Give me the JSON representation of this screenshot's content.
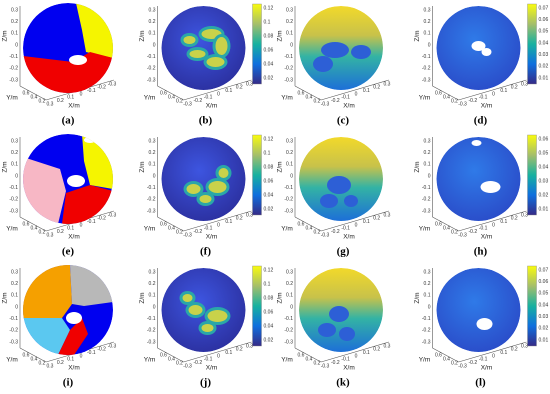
{
  "panels": [
    {
      "label": "(a)",
      "z_label": "Z/m",
      "y_label": "Y/m",
      "x_label": "X/m",
      "z_ticks": [
        0.3,
        0.2,
        0.1,
        0,
        -0.1,
        -0.2,
        -0.3
      ],
      "y_ticks": [
        0.6,
        0.4,
        0.2
      ],
      "x_ticks": [
        0.3,
        0.2,
        0.1,
        0,
        -0.1,
        -0.2,
        -0.3
      ]
    },
    {
      "label": "(b)",
      "z_label": "Z/m",
      "y_label": "Y/m",
      "x_label": "X/m",
      "z_ticks": [
        0.3,
        0.2,
        0.1,
        0,
        -0.1,
        -0.2,
        -0.3
      ],
      "y_ticks": [
        0.6,
        0.4,
        0.2
      ],
      "x_ticks": [
        -0.3,
        -0.2,
        -0.1,
        0,
        0.1,
        0.2,
        0.3
      ],
      "colorbar_ticks": [
        0.12,
        0.1,
        0.08,
        0.06,
        0.04,
        0.02
      ]
    },
    {
      "label": "(c)",
      "z_label": "Z/m",
      "y_label": "Y/m",
      "x_label": "X/m",
      "z_ticks": [
        0.3,
        0.2,
        0.1,
        0,
        -0.1,
        -0.2,
        -0.3
      ],
      "y_ticks": [
        0.6,
        0.4,
        0.2
      ],
      "x_ticks": [
        -0.3,
        -0.2,
        -0.1,
        0,
        0.1,
        0.2,
        0.3
      ]
    },
    {
      "label": "(d)",
      "z_label": "Z/m",
      "y_label": "Y/m",
      "x_label": "X/m",
      "z_ticks": [
        0.3,
        0.2,
        0.1,
        0,
        -0.1,
        -0.2,
        -0.3
      ],
      "y_ticks": [
        0.6,
        0.4,
        0.2
      ],
      "x_ticks": [
        -0.3,
        -0.2,
        -0.1,
        0,
        0.1,
        0.2,
        0.3
      ],
      "colorbar_ticks": [
        0.07,
        0.06,
        0.05,
        0.04,
        0.03,
        0.02,
        0.01
      ]
    },
    {
      "label": "(e)",
      "z_label": "Z/m",
      "y_label": "Y/m",
      "x_label": "X/m",
      "z_ticks": [
        0.3,
        0.2,
        0.1,
        0,
        -0.1,
        -0.2,
        -0.3
      ],
      "y_ticks": [
        0.6,
        0.4,
        0.2
      ],
      "x_ticks": [
        0.3,
        0.2,
        0.1,
        0,
        -0.1,
        -0.2,
        -0.3
      ]
    },
    {
      "label": "(f)",
      "z_label": "Z/m",
      "y_label": "Y/m",
      "x_label": "X/m",
      "z_ticks": [
        0.3,
        0.2,
        0.1,
        0,
        -0.1,
        -0.2,
        -0.3
      ],
      "y_ticks": [
        0.6,
        0.4,
        0.2
      ],
      "x_ticks": [
        -0.3,
        -0.2,
        -0.1,
        0,
        0.1,
        0.2,
        0.3
      ],
      "colorbar_ticks": [
        0.12,
        0.1,
        0.08,
        0.06,
        0.04,
        0.02
      ]
    },
    {
      "label": "(g)",
      "z_label": "Z/m",
      "y_label": "Y/m",
      "x_label": "X/m",
      "z_ticks": [
        0.3,
        0.2,
        0.1,
        0,
        -0.1,
        -0.2,
        -0.3
      ],
      "y_ticks": [
        0.6,
        0.4,
        0.2
      ],
      "x_ticks": [
        -0.3,
        -0.2,
        -0.1,
        0,
        0.1,
        0.2,
        0.3
      ]
    },
    {
      "label": "(h)",
      "z_label": "Z/m",
      "y_label": "Y/m",
      "x_label": "X/m",
      "z_ticks": [
        0.3,
        0.2,
        0.1,
        0,
        -0.1,
        -0.2,
        -0.3
      ],
      "y_ticks": [
        0.6,
        0.4,
        0.2
      ],
      "x_ticks": [
        -0.3,
        -0.2,
        -0.1,
        0,
        0.1,
        0.2,
        0.3
      ],
      "colorbar_ticks": [
        0.06,
        0.05,
        0.04,
        0.03,
        0.02,
        0.01
      ]
    },
    {
      "label": "(i)",
      "z_label": "Z/m",
      "y_label": "Y/m",
      "x_label": "X/m",
      "z_ticks": [
        0.3,
        0.2,
        0.1,
        0,
        -0.1,
        -0.2,
        -0.3
      ],
      "y_ticks": [
        0.6,
        0.4,
        0.2
      ],
      "x_ticks": [
        0.3,
        0.2,
        0.1,
        0,
        -0.1,
        -0.2,
        -0.3
      ]
    },
    {
      "label": "(j)",
      "z_label": "Z/m",
      "y_label": "Y/m",
      "x_label": "X/m",
      "z_ticks": [
        0.3,
        0.2,
        0.1,
        0,
        -0.1,
        -0.2,
        -0.3
      ],
      "y_ticks": [
        0.6,
        0.4,
        0.2
      ],
      "x_ticks": [
        -0.3,
        -0.2,
        -0.1,
        0,
        0.1,
        0.2,
        0.3
      ],
      "colorbar_ticks": [
        0.12,
        0.1,
        0.08,
        0.06,
        0.04,
        0.02
      ]
    },
    {
      "label": "(k)",
      "z_label": "Z/m",
      "y_label": "Y/m",
      "x_label": "X/m",
      "z_ticks": [
        0.3,
        0.2,
        0.1,
        0,
        -0.1,
        -0.2,
        -0.3
      ],
      "y_ticks": [
        0.6,
        0.4,
        0.2
      ],
      "x_ticks": [
        -0.3,
        -0.2,
        -0.1,
        0,
        0.1,
        0.2,
        0.3
      ]
    },
    {
      "label": "(l)",
      "z_label": "Z/m",
      "y_label": "Y/m",
      "x_label": "X/m",
      "z_ticks": [
        0.3,
        0.2,
        0.1,
        0,
        -0.1,
        -0.2,
        -0.3
      ],
      "y_ticks": [
        0.6,
        0.4,
        0.2
      ],
      "x_ticks": [
        -0.3,
        -0.2,
        -0.1,
        0,
        0.1,
        0.2,
        0.3
      ],
      "colorbar_ticks": [
        0.07,
        0.06,
        0.05,
        0.04,
        0.03,
        0.02,
        0.01
      ]
    }
  ]
}
